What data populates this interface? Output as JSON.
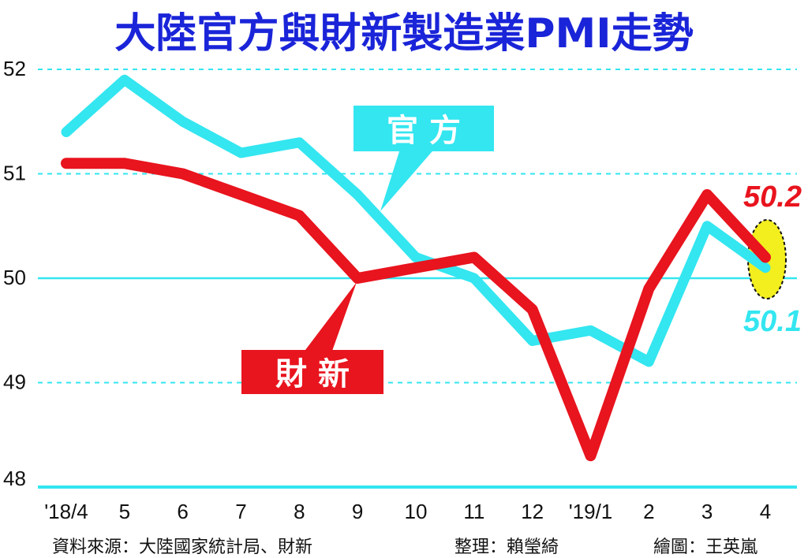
{
  "chart_data": {
    "type": "line",
    "title": "大陸官方與財新製造業PMI走勢",
    "categories": [
      "'18/4",
      "5",
      "6",
      "7",
      "8",
      "9",
      "10",
      "11",
      "12",
      "'19/1",
      "2",
      "3",
      "4"
    ],
    "y_ticks": [
      "52",
      "51",
      "50",
      "49",
      "48"
    ],
    "ylim": [
      48,
      52
    ],
    "grid": "dashed horizontal lines at 49, 51, 52; solid line at 50",
    "series": [
      {
        "name": "官 方",
        "color": "#33e6f0",
        "values": [
          51.4,
          51.9,
          51.5,
          51.2,
          51.3,
          50.8,
          50.2,
          50.0,
          49.4,
          49.5,
          49.2,
          50.5,
          50.1
        ],
        "end_label": "50.1"
      },
      {
        "name": "財 新",
        "color": "#e8141e",
        "values": [
          51.1,
          51.1,
          51.0,
          50.8,
          50.6,
          50.0,
          50.1,
          50.2,
          49.7,
          48.3,
          49.9,
          50.8,
          50.2
        ],
        "end_label": "50.2"
      }
    ],
    "highlight_color": "#f3ee1e"
  },
  "footer": {
    "source": "資料來源：大陸國家統計局、財新",
    "editor": "整理：賴瑩綺",
    "artist": "繪圖：王英嵐"
  }
}
